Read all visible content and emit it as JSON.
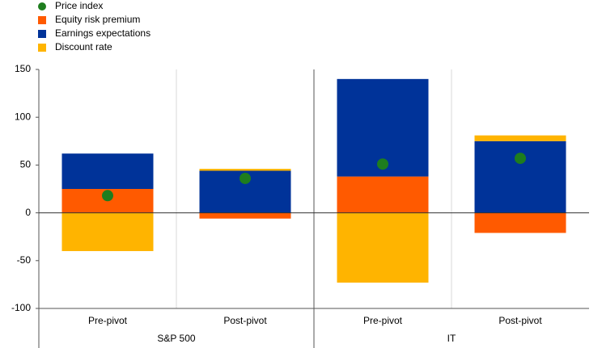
{
  "chart_data": {
    "type": "bar",
    "stacked": true,
    "categories": [
      "Pre-pivot",
      "Post-pivot",
      "Pre-pivot",
      "Post-pivot"
    ],
    "groups": [
      "S&P 500",
      "IT"
    ],
    "series": [
      {
        "name": "Price index",
        "type": "scatter",
        "color": "#1e7d1e",
        "values": [
          18,
          36,
          51,
          57
        ]
      },
      {
        "name": "Equity risk premium",
        "color": "#ff5a00",
        "values": [
          25,
          -6,
          38,
          -21
        ]
      },
      {
        "name": "Earnings expectations",
        "color": "#003399",
        "values": [
          37,
          44,
          102,
          75
        ]
      },
      {
        "name": "Discount rate",
        "color": "#ffb400",
        "values": [
          -40,
          2,
          -73,
          6
        ]
      }
    ],
    "ylim": [
      -100,
      150
    ],
    "yticks": [
      -100,
      -50,
      0,
      50,
      100,
      150
    ],
    "grid": true,
    "legend": "top-left"
  }
}
